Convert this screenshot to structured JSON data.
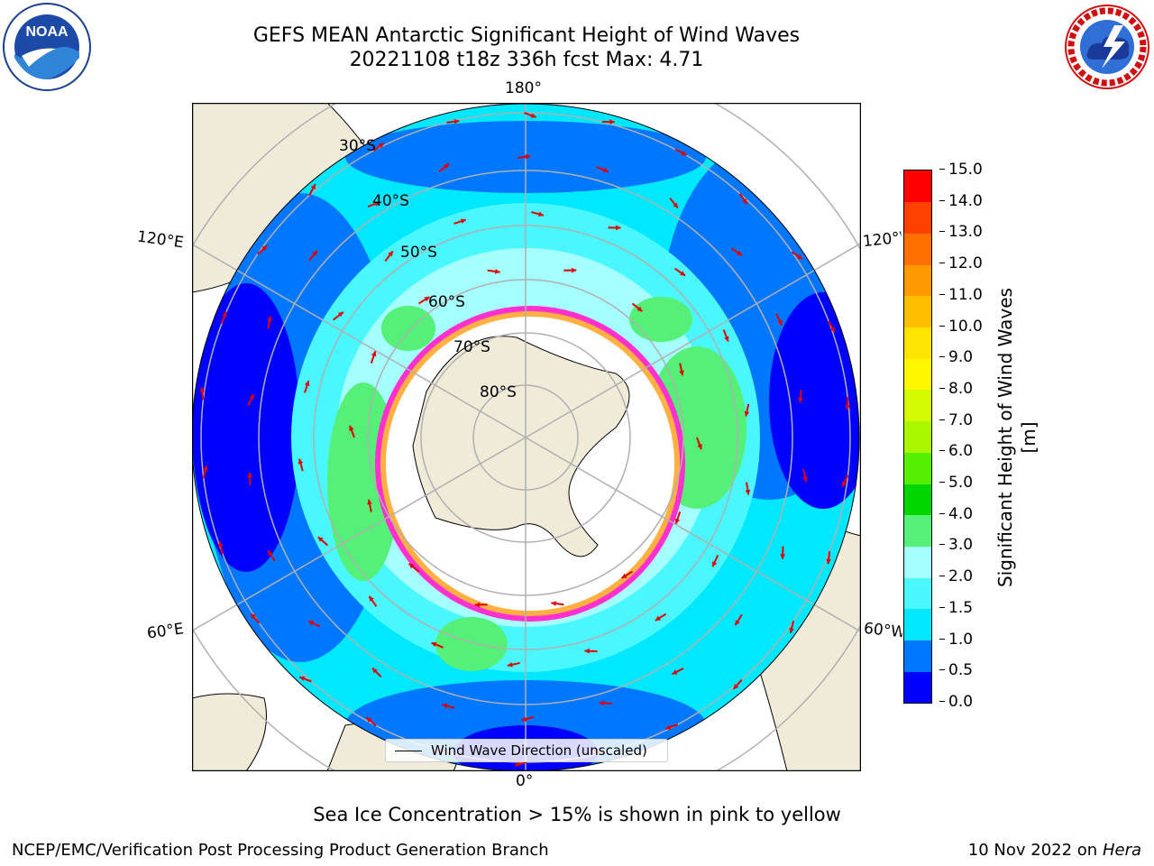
{
  "header": {
    "title_line1": "GEFS MEAN Antarctic Significant Height of Wind Waves",
    "title_line2": "20221108 t18z 336h fcst   Max: 4.71"
  },
  "logos": {
    "left": {
      "name": "noaa-logo",
      "text": "NOAA"
    },
    "right": {
      "name": "national-weather-service-logo",
      "text": "NATIONAL WEATHER SERVICE"
    }
  },
  "map": {
    "projection": "south-polar-stereographic",
    "longitude_labels": {
      "top": "180°",
      "bottom": "0°",
      "left_upper": "120°E",
      "left_lower": "60°E",
      "right_upper": "120°W",
      "right_lower": "60°W"
    },
    "latitude_labels": [
      "30°S",
      "40°S",
      "50°S",
      "60°S",
      "70°S",
      "80°S"
    ],
    "colors": {
      "land": "#efebd8",
      "ice_edge": [
        "#ff2fd0",
        "#ff9ad6",
        "#ffb040",
        "#ffe06a"
      ],
      "arrows": "#e00000",
      "graticule": "#b0b0b0"
    },
    "legend_text": "Wind Wave Direction (unscaled)"
  },
  "colorbar": {
    "label": "Significant Height of Wind Waves [m]",
    "ticks": [
      "0.0",
      "0.5",
      "1.0",
      "1.5",
      "2.0",
      "3.0",
      "4.0",
      "5.0",
      "6.0",
      "7.0",
      "8.0",
      "9.0",
      "10.0",
      "11.0",
      "12.0",
      "13.0",
      "14.0",
      "15.0"
    ],
    "colors": [
      "#0000ff",
      "#0077ff",
      "#00e8ff",
      "#4bf7ff",
      "#a6ffff",
      "#55f077",
      "#00d700",
      "#55ef00",
      "#aaf700",
      "#d4fb00",
      "#fff700",
      "#ffe400",
      "#ffbf00",
      "#ff9900",
      "#ff7000",
      "#ff4000",
      "#ff0000"
    ]
  },
  "footer": {
    "note": "Sea Ice Concentration > 15% is shown in pink to yellow",
    "credit": "NCEP/EMC/Verification Post Processing Product Generation Branch",
    "date": "10 Nov 2022 on",
    "machine": "Hera"
  }
}
